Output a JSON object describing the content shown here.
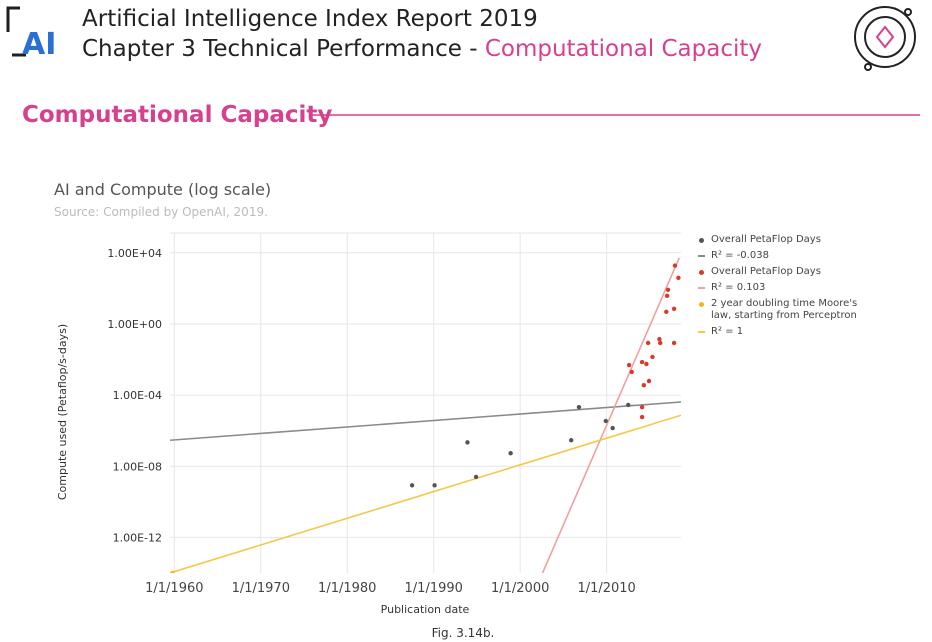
{
  "header": {
    "logo": "AI",
    "title": "Artificial Intelligence Index Report 2019",
    "chapter": "Chapter 3 Technical Performance - ",
    "chapter_topic": "Computational Capacity",
    "section": "Computational Capacity"
  },
  "chart_data": {
    "type": "scatter",
    "title": "AI and Compute (log scale)",
    "subtitle": "Source: Compiled by OpenAI, 2019.",
    "x_label": "Publication date",
    "y_label": "Compute used (Petaflop/s-days)",
    "log_y": true,
    "grid": true,
    "legend": "right",
    "xlim": [
      1959.5,
      2018.6
    ],
    "xticks": [
      {
        "value": 1960,
        "label": "1/1/1960"
      },
      {
        "value": 1970,
        "label": "1/1/1970"
      },
      {
        "value": 1980,
        "label": "1/1/1980"
      },
      {
        "value": 1990,
        "label": "1/1/1990"
      },
      {
        "value": 2000,
        "label": "1/1/2000"
      },
      {
        "value": 2010,
        "label": "1/1/2010"
      }
    ],
    "ylim": [
      1e-14,
      100000.0
    ],
    "yticks": [
      {
        "value": 10000.0,
        "label": "1.00E+04"
      },
      {
        "value": 1,
        "label": "1.00E+00"
      },
      {
        "value": 0.0001,
        "label": "1.00E-04"
      },
      {
        "value": 1e-08,
        "label": "1.00E-08"
      },
      {
        "value": 1e-12,
        "label": "1.00E-12"
      }
    ],
    "series": [
      {
        "name": "Overall PetaFlop Days",
        "color": "#555555",
        "marker": "dot",
        "x": [
          1987.5,
          1990.1,
          1993.9,
          1994.9,
          1998.9,
          2005.9,
          2006.8,
          2009.9,
          2010.7,
          2012.5
        ],
        "values": [
          8.5e-10,
          8.5e-10,
          2.2e-07,
          2.5e-09,
          5.4e-08,
          2.9e-07,
          2.1e-05,
          3.5e-06,
          1.4e-06,
          2.8e-05
        ]
      },
      {
        "name": "R² = -0.038",
        "color": "#8a8a8a",
        "marker": "line",
        "x": [
          1959.5,
          2018.6
        ],
        "values": [
          2.9e-07,
          4.1e-05
        ]
      },
      {
        "name": "Overall PetaFlop Days",
        "color": "#d9392b",
        "marker": "dot",
        "x": [
          2012.6,
          2012.9,
          2014.1,
          2014.3,
          2014.8,
          2014.6,
          2015.3,
          2014.9,
          2014.1,
          2014.1,
          2016.1,
          2016.2,
          2016.9,
          2017.0,
          2017.1,
          2017.8,
          2017.8,
          2017.9,
          2018.3
        ],
        "values": [
          0.0049,
          0.002,
          0.0072,
          0.00036,
          0.085,
          0.0056,
          0.014,
          0.00062,
          2.1e-05,
          5.8e-06,
          0.14,
          0.085,
          4.8,
          38,
          83,
          7.1,
          0.085,
          1900,
          390
        ]
      },
      {
        "name": "R² = 0.103",
        "color": "#f0a0a0",
        "marker": "line",
        "x": [
          2002.5,
          2018.4
        ],
        "values": [
          8e-15,
          5200
        ]
      },
      {
        "name": "2 year doubling time Moore's law, starting from Perceptron",
        "color": "#f2b51c",
        "marker": "dot",
        "x": [
          1959.8
        ],
        "values": [
          1e-14
        ]
      },
      {
        "name": "R² = 1",
        "color": "#f5c84a",
        "marker": "line",
        "x": [
          1959.5,
          2018.6
        ],
        "values": [
          1e-14,
          7.4e-06
        ]
      }
    ]
  },
  "caption": "Fig. 3.14b."
}
